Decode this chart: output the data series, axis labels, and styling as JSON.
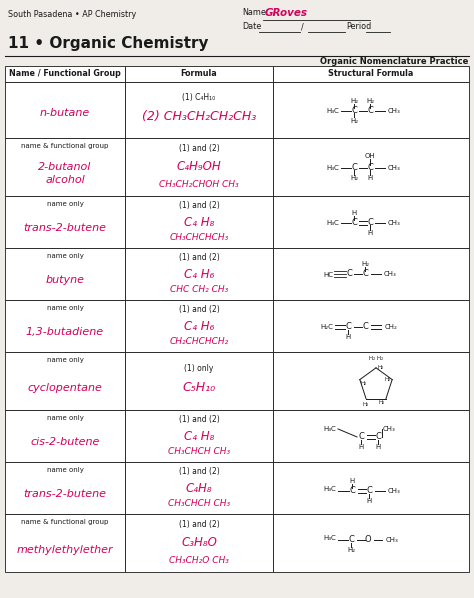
{
  "title": "11 • Organic Chemistry",
  "subtitle_left": "South Pasadena • AP Chemistry",
  "name_value": "GRoves",
  "practice_title": "Organic Nomenclature Practice",
  "col_headers": [
    "Name / Functional Group",
    "Formula",
    "Structural Formula"
  ],
  "bg_color": "#f0ede8",
  "pink": "#d4005a",
  "black": "#1a1a1a",
  "rows": [
    {
      "label_type": "",
      "name": "n-butane",
      "f1": "(1) C₄H₁₀",
      "f2": "(2) CH₃CH₂CH₂CH₃",
      "f2_pink": false,
      "struct": "n-butane"
    },
    {
      "label_type": "name & functional group",
      "name": "2-butanol\nalcohol",
      "f1": "(1) and (2)",
      "f2": "C₄H₉OH",
      "f3": "CH₃CH₂CHOH CH₃",
      "struct": "2-butanol"
    },
    {
      "label_type": "name only",
      "name": "trans-2-butene",
      "f1": "(1) and (2)",
      "f2": "C₄ H₈",
      "f3": "CH₃CHCHCH₃",
      "struct": "trans-2-butene-row3"
    },
    {
      "label_type": "name only",
      "name": "butyne",
      "f1": "(1) and (2)",
      "f2": "C₄ H₆",
      "f3": "CHC CH₂ CH₃",
      "struct": "butyne"
    },
    {
      "label_type": "name only",
      "name": "1,3-butadiene",
      "f1": "(1) and (2)",
      "f2": "C₄ H₆",
      "f3": "CH₂CHCHCH₂",
      "struct": "1,3-butadiene"
    },
    {
      "label_type": "name only",
      "name": "cyclopentane",
      "f1": "(1) only",
      "f2": "C₅H₁₀",
      "f3": "",
      "struct": "cyclopentane"
    },
    {
      "label_type": "name only",
      "name": "cis-2-butene",
      "f1": "(1) and (2)",
      "f2": "C₄ H₈",
      "f3": "CH₃CHCH CH₃",
      "struct": "cis-2-butene"
    },
    {
      "label_type": "name only",
      "name": "trans-2-butene",
      "f1": "(1) and (2)",
      "f2": "C₄H₈",
      "f3": "CH₃CHCH CH₃",
      "struct": "trans-2-butene-row8"
    },
    {
      "label_type": "name & functional group",
      "name": "methylethylether",
      "f1": "(1) and (2)",
      "f2": "C₃H₈O",
      "f3": "CH₃CH₂O CH₃",
      "struct": "methyl-ethyl-ether"
    }
  ]
}
